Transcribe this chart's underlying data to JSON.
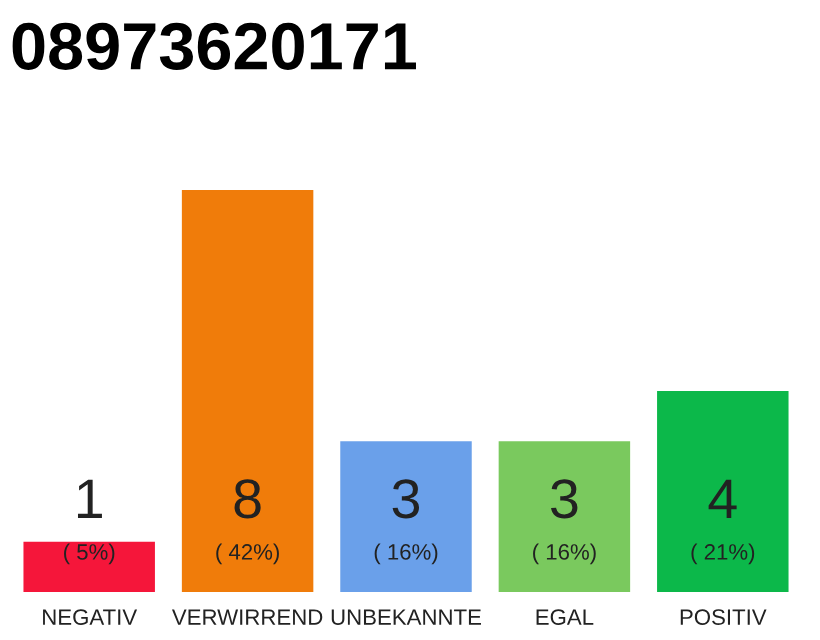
{
  "chart_data": {
    "type": "bar",
    "title": "08973620171",
    "categories": [
      "NEGATIV",
      "VERWIRREND",
      "UNBEKANNTE",
      "EGAL",
      "POSITIV"
    ],
    "values": [
      1,
      8,
      3,
      3,
      4
    ],
    "colors": [
      "#f5163a",
      "#f07c0a",
      "#6aa0ea",
      "#7ac95e",
      "#0cb84a"
    ],
    "ylim": [
      0,
      8
    ],
    "data_labels": true,
    "grid": false,
    "legend": false,
    "annotations": [
      "( 5%)",
      "( 42%)",
      "( 16%)",
      "( 16%)",
      "( 21%)"
    ]
  }
}
